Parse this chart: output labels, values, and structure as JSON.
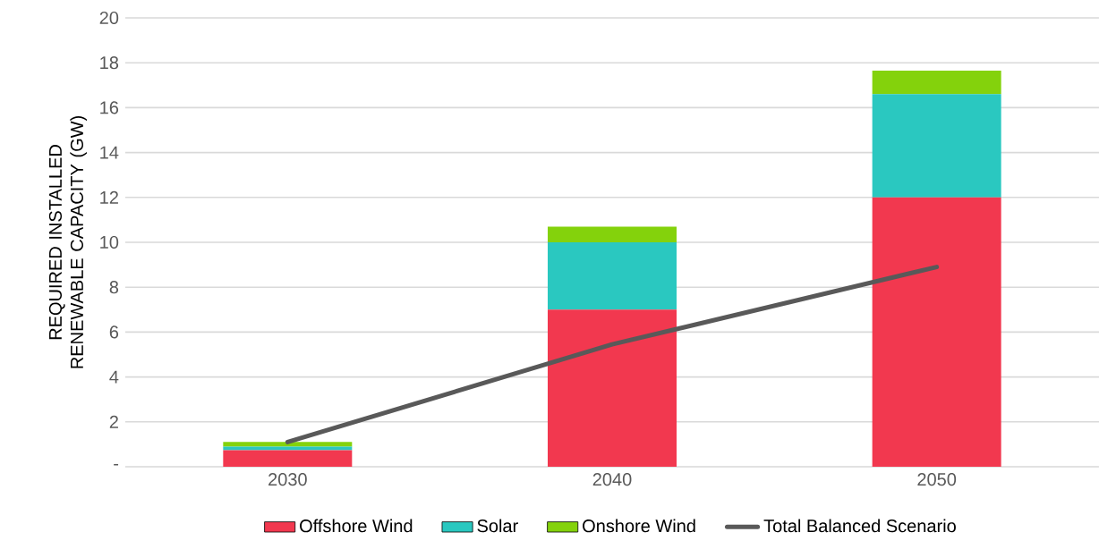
{
  "chart_data": {
    "type": "bar",
    "stacked": true,
    "ylabel": "REQUIRED INSTALLED RENEWABLE CAPACITY (GW)",
    "categories": [
      "2030",
      "2040",
      "2050"
    ],
    "series": [
      {
        "name": "Offshore Wind",
        "color": "#f2384f",
        "values": [
          0.74,
          7,
          12
        ]
      },
      {
        "name": "Solar",
        "color": "#2ac8c0",
        "values": [
          0.16,
          3,
          4.6
        ]
      },
      {
        "name": "Onshore Wind",
        "color": "#84d20c",
        "values": [
          0.2,
          0.7,
          1.05
        ]
      },
      {
        "name": "Total Balanced Scenario",
        "type": "line",
        "color": "#595959",
        "values": [
          1.1,
          5.45,
          8.9
        ]
      }
    ],
    "ylim": [
      0,
      20
    ],
    "yticks": [
      {
        "value": 0,
        "label": "-"
      },
      2,
      4,
      6,
      8,
      10,
      12,
      14,
      16,
      18,
      20
    ],
    "grid": "y",
    "legend": "bottom",
    "marker": "none",
    "line_style": "solid"
  }
}
